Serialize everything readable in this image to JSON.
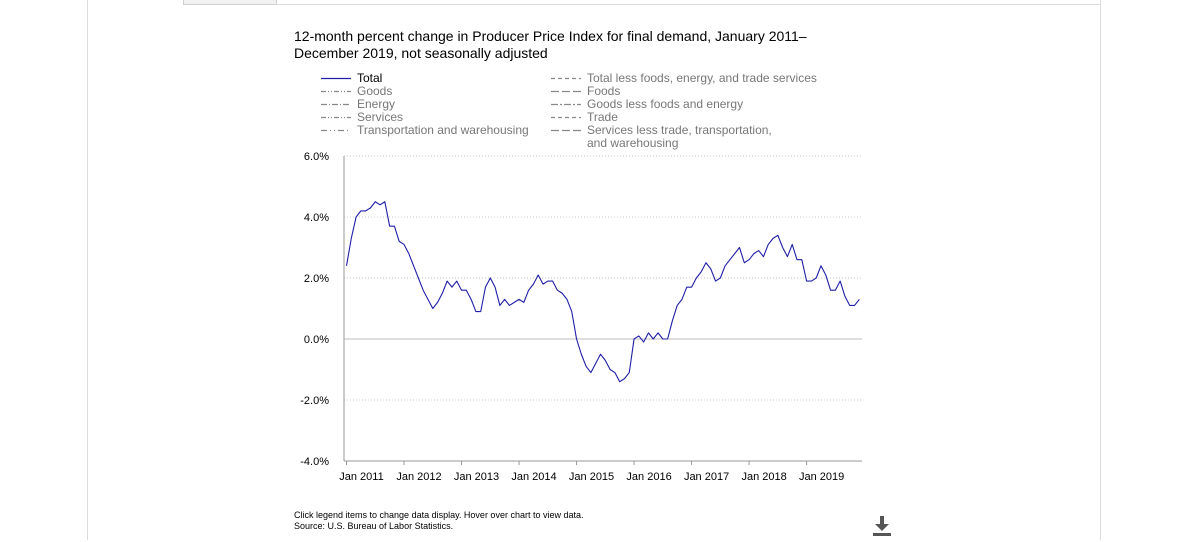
{
  "chart_data": {
    "type": "line",
    "title": "12-month percent change in Producer Price Index for final demand, January 2011–December 2019, not seasonally adjusted",
    "xlabel": "",
    "ylabel": "",
    "x_start": "2011-01",
    "x_end": "2019-12",
    "x_ticks": [
      "Jan 2011",
      "Jan 2012",
      "Jan 2013",
      "Jan 2014",
      "Jan 2015",
      "Jan 2016",
      "Jan 2017",
      "Jan 2018",
      "Jan 2019"
    ],
    "y_ticks": [
      "6.0%",
      "4.0%",
      "2.0%",
      "0.0%",
      "-2.0%",
      "-4.0%"
    ],
    "ylim": [
      -4,
      6
    ],
    "grid": true,
    "legend_position": "top",
    "series": [
      {
        "name": "Total",
        "color": "#1f1fa8",
        "visible": true,
        "values": [
          2.4,
          3.3,
          4.0,
          4.2,
          4.2,
          4.3,
          4.5,
          4.4,
          4.5,
          3.7,
          3.7,
          3.2,
          3.1,
          2.8,
          2.4,
          2.0,
          1.6,
          1.3,
          1.0,
          1.2,
          1.5,
          1.9,
          1.7,
          1.9,
          1.6,
          1.6,
          1.3,
          0.9,
          0.9,
          1.7,
          2.0,
          1.7,
          1.1,
          1.3,
          1.1,
          1.2,
          1.3,
          1.2,
          1.6,
          1.8,
          2.1,
          1.8,
          1.9,
          1.9,
          1.6,
          1.5,
          1.3,
          0.9,
          0.0,
          -0.5,
          -0.9,
          -1.1,
          -0.8,
          -0.5,
          -0.7,
          -1.0,
          -1.1,
          -1.4,
          -1.3,
          -1.1,
          0.0,
          0.1,
          -0.1,
          0.2,
          0.0,
          0.2,
          0.0,
          0.0,
          0.6,
          1.1,
          1.3,
          1.7,
          1.7,
          2.0,
          2.2,
          2.5,
          2.3,
          1.9,
          2.0,
          2.4,
          2.6,
          2.8,
          3.0,
          2.5,
          2.6,
          2.8,
          2.9,
          2.7,
          3.1,
          3.3,
          3.4,
          3.0,
          2.7,
          3.1,
          2.6,
          2.6,
          1.9,
          1.9,
          2.0,
          2.4,
          2.1,
          1.6,
          1.6,
          1.9,
          1.4,
          1.1,
          1.1,
          1.3
        ]
      }
    ]
  },
  "legend": {
    "left": [
      {
        "label": "Total",
        "style": "solid",
        "color": "#1f1fa8",
        "active": true
      },
      {
        "label": "Goods",
        "style": "dashdotdot",
        "color": "#888888",
        "active": false
      },
      {
        "label": "Energy",
        "style": "dashdot",
        "color": "#888888",
        "active": false
      },
      {
        "label": "Services",
        "style": "dashdotdot",
        "color": "#888888",
        "active": false
      },
      {
        "label": "Transportation and warehousing",
        "style": "longdot",
        "color": "#888888",
        "active": false
      }
    ],
    "right": [
      {
        "label": "Total less foods, energy, and trade services",
        "style": "dash",
        "color": "#888888",
        "active": false
      },
      {
        "label": "Foods",
        "style": "longdash",
        "color": "#888888",
        "active": false
      },
      {
        "label": "Goods less foods and energy",
        "style": "longdashdot",
        "color": "#888888",
        "active": false
      },
      {
        "label": "Trade",
        "style": "dash",
        "color": "#888888",
        "active": false
      },
      {
        "label": "Services less trade, transportation, and warehousing",
        "style": "longdash",
        "color": "#888888",
        "active": false
      }
    ]
  },
  "footnote": {
    "line1": "Click legend items to change data display. Hover over chart to view data.",
    "line2": "Source: U.S. Bureau of Labor Statistics."
  },
  "icons": {
    "download": "download-icon"
  }
}
